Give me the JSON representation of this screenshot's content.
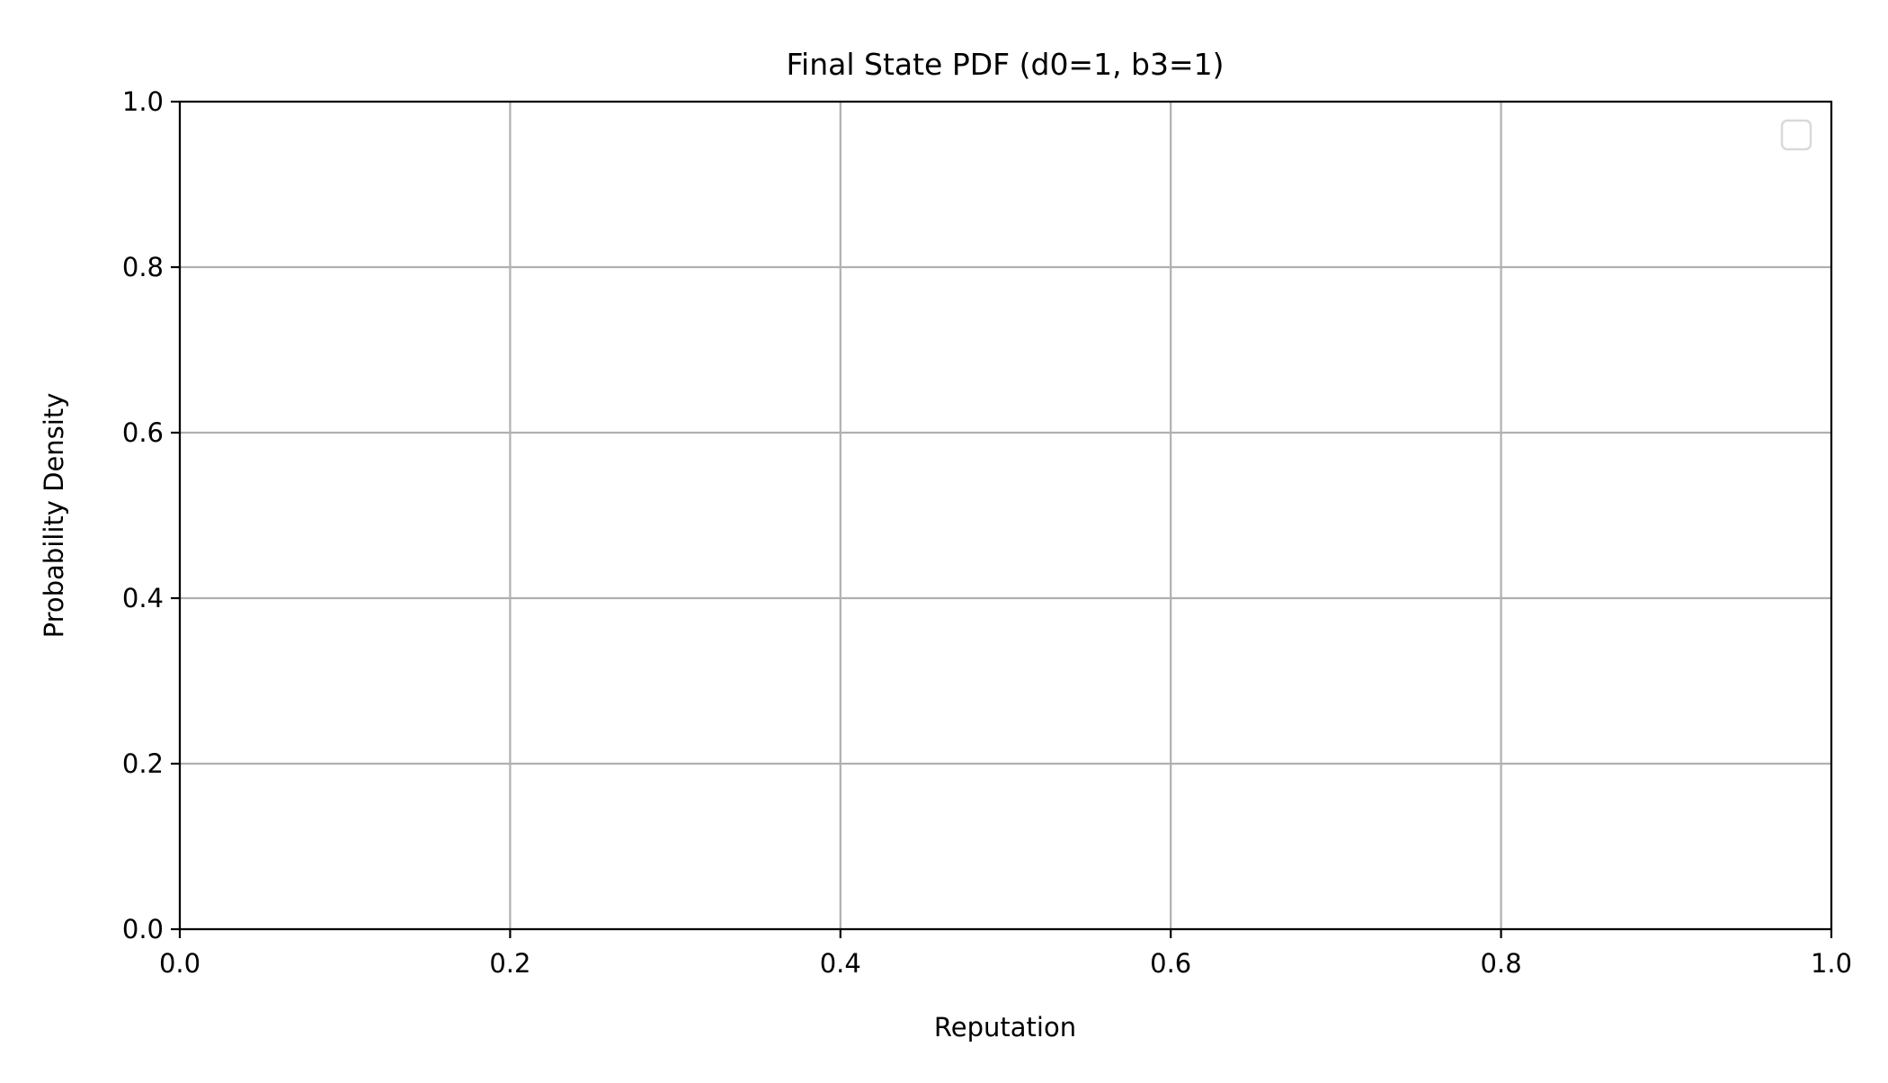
{
  "chart_data": {
    "type": "line",
    "title": "Final State PDF (d0=1, b3=1)",
    "xlabel": "Reputation",
    "ylabel": "Probability Density",
    "xlim": [
      0.0,
      1.0
    ],
    "ylim": [
      0.0,
      1.0
    ],
    "xticks": [
      0.0,
      0.2,
      0.4,
      0.6,
      0.8,
      1.0
    ],
    "xtick_labels": [
      "0.0",
      "0.2",
      "0.4",
      "0.6",
      "0.8",
      "1.0"
    ],
    "yticks": [
      0.0,
      0.2,
      0.4,
      0.6,
      0.8,
      1.0
    ],
    "ytick_labels": [
      "0.0",
      "0.2",
      "0.4",
      "0.6",
      "0.8",
      "1.0"
    ],
    "grid": true,
    "legend": {
      "placement": "top-right",
      "entries": []
    },
    "series": []
  },
  "colors": {
    "axis": "#000000",
    "grid": "#b0b0b0",
    "legend_border": "#d9d9d9",
    "background": "#ffffff"
  }
}
